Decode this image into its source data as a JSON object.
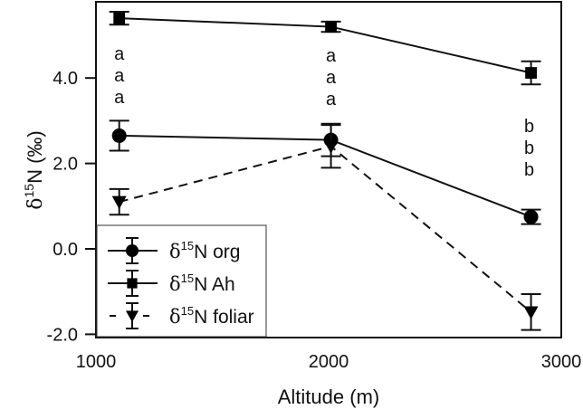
{
  "chart_data": {
    "type": "line",
    "title": "",
    "xlabel": "Altitude (m)",
    "ylabel": "δ15N (‰)",
    "xlim": [
      1000,
      3000
    ],
    "ylim": [
      -2.1,
      5.8
    ],
    "xticks": [
      1000,
      2000,
      3000
    ],
    "xtick_labels": [
      "1000",
      "2000",
      "3000"
    ],
    "yticks": [
      -2.0,
      0.0,
      2.0,
      4.0
    ],
    "ytick_labels": [
      "-2.0",
      "0.0",
      "2.0",
      "4.0"
    ],
    "grid": false,
    "legend_position": "lower left",
    "x": [
      1100,
      2010,
      2870
    ],
    "series": [
      {
        "name": "δ15N org",
        "label_prefix": "δ",
        "label_sup": "15",
        "label_rest": "N  org",
        "marker": "circle",
        "linestyle": "solid",
        "values": [
          2.65,
          2.55,
          0.75
        ],
        "errors": [
          0.35,
          0.38,
          0.17
        ]
      },
      {
        "name": "δ15N Ah",
        "label_prefix": "δ",
        "label_sup": "15",
        "label_rest": "N Ah",
        "marker": "square",
        "linestyle": "solid",
        "values": [
          5.4,
          5.2,
          4.12
        ],
        "errors": [
          0.15,
          0.12,
          0.27
        ]
      },
      {
        "name": "δ15N foliar",
        "label_prefix": "δ",
        "label_sup": "15",
        "label_rest": "N foliar",
        "marker": "triangle-down",
        "linestyle": "dashed",
        "values": [
          1.1,
          2.4,
          -1.48
        ],
        "errors": [
          0.3,
          0.5,
          0.42
        ]
      }
    ],
    "annotations": [
      {
        "x": 1100,
        "letters": [
          "a",
          "a",
          "a"
        ]
      },
      {
        "x": 2010,
        "letters": [
          "a",
          "a",
          "a"
        ]
      },
      {
        "x": 2870,
        "letters": [
          "b",
          "b",
          "b"
        ]
      }
    ]
  },
  "axis": {
    "ylabel_delta": "δ",
    "ylabel_sup": "15",
    "ylabel_rest": "N (‰)",
    "xlabel": "Altitude (m)"
  }
}
